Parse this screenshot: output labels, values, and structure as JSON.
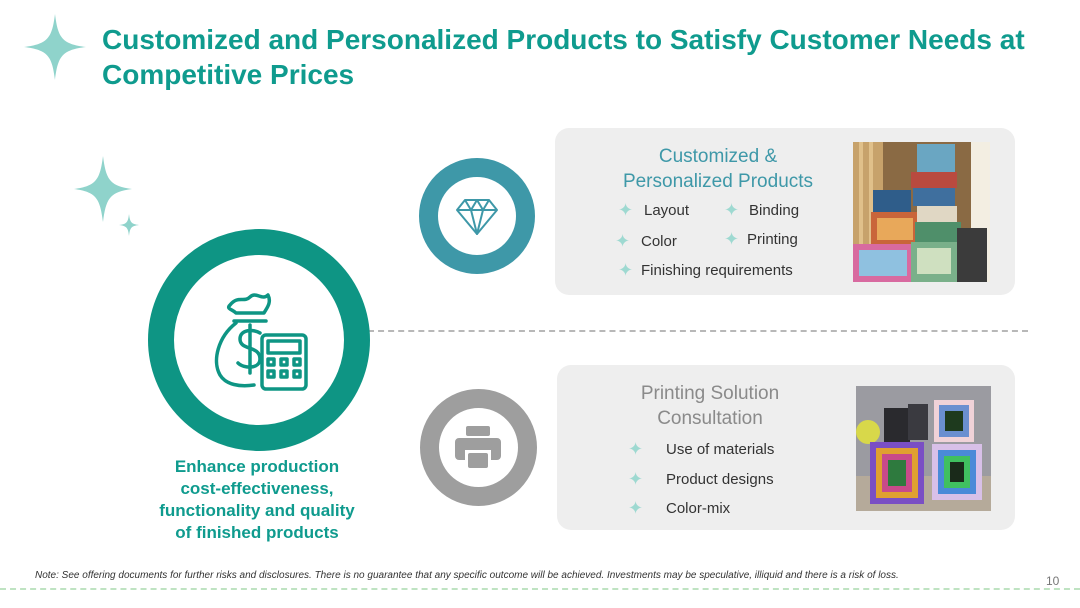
{
  "title": "Customized and Personalized Products to Satisfy Customer Needs at Competitive Prices",
  "left": {
    "caption": [
      "Enhance production",
      "cost-effectiveness,",
      "functionality and quality",
      "of finished products"
    ],
    "icon": "money-bag-calculator-icon"
  },
  "card1": {
    "title": [
      "Customized &",
      "Personalized Products"
    ],
    "items": [
      "Layout",
      "Binding",
      "Color",
      "Printing",
      "Finishing requirements"
    ],
    "icon": "diamond-icon",
    "image": "book-stack-photo"
  },
  "card2": {
    "title": [
      "Printing Solution",
      "Consultation"
    ],
    "items": [
      "Use of materials",
      "Product designs",
      "Color-mix"
    ],
    "icon": "printer-icon",
    "image": "printed-boxes-photo"
  },
  "footer": {
    "note": "Note: See offering documents for further risks and disclosures. There is no guarantee that any specific outcome will be achieved. Investments may be  speculative, illiquid and there is a risk of loss.",
    "page": "10"
  },
  "colors": {
    "title": "#0f9b8e",
    "teal_ring": "#0e9584",
    "blue_ring": "#3e98a8",
    "grey_ring": "#9e9e9e",
    "sparkle": "#8fd3cb"
  }
}
